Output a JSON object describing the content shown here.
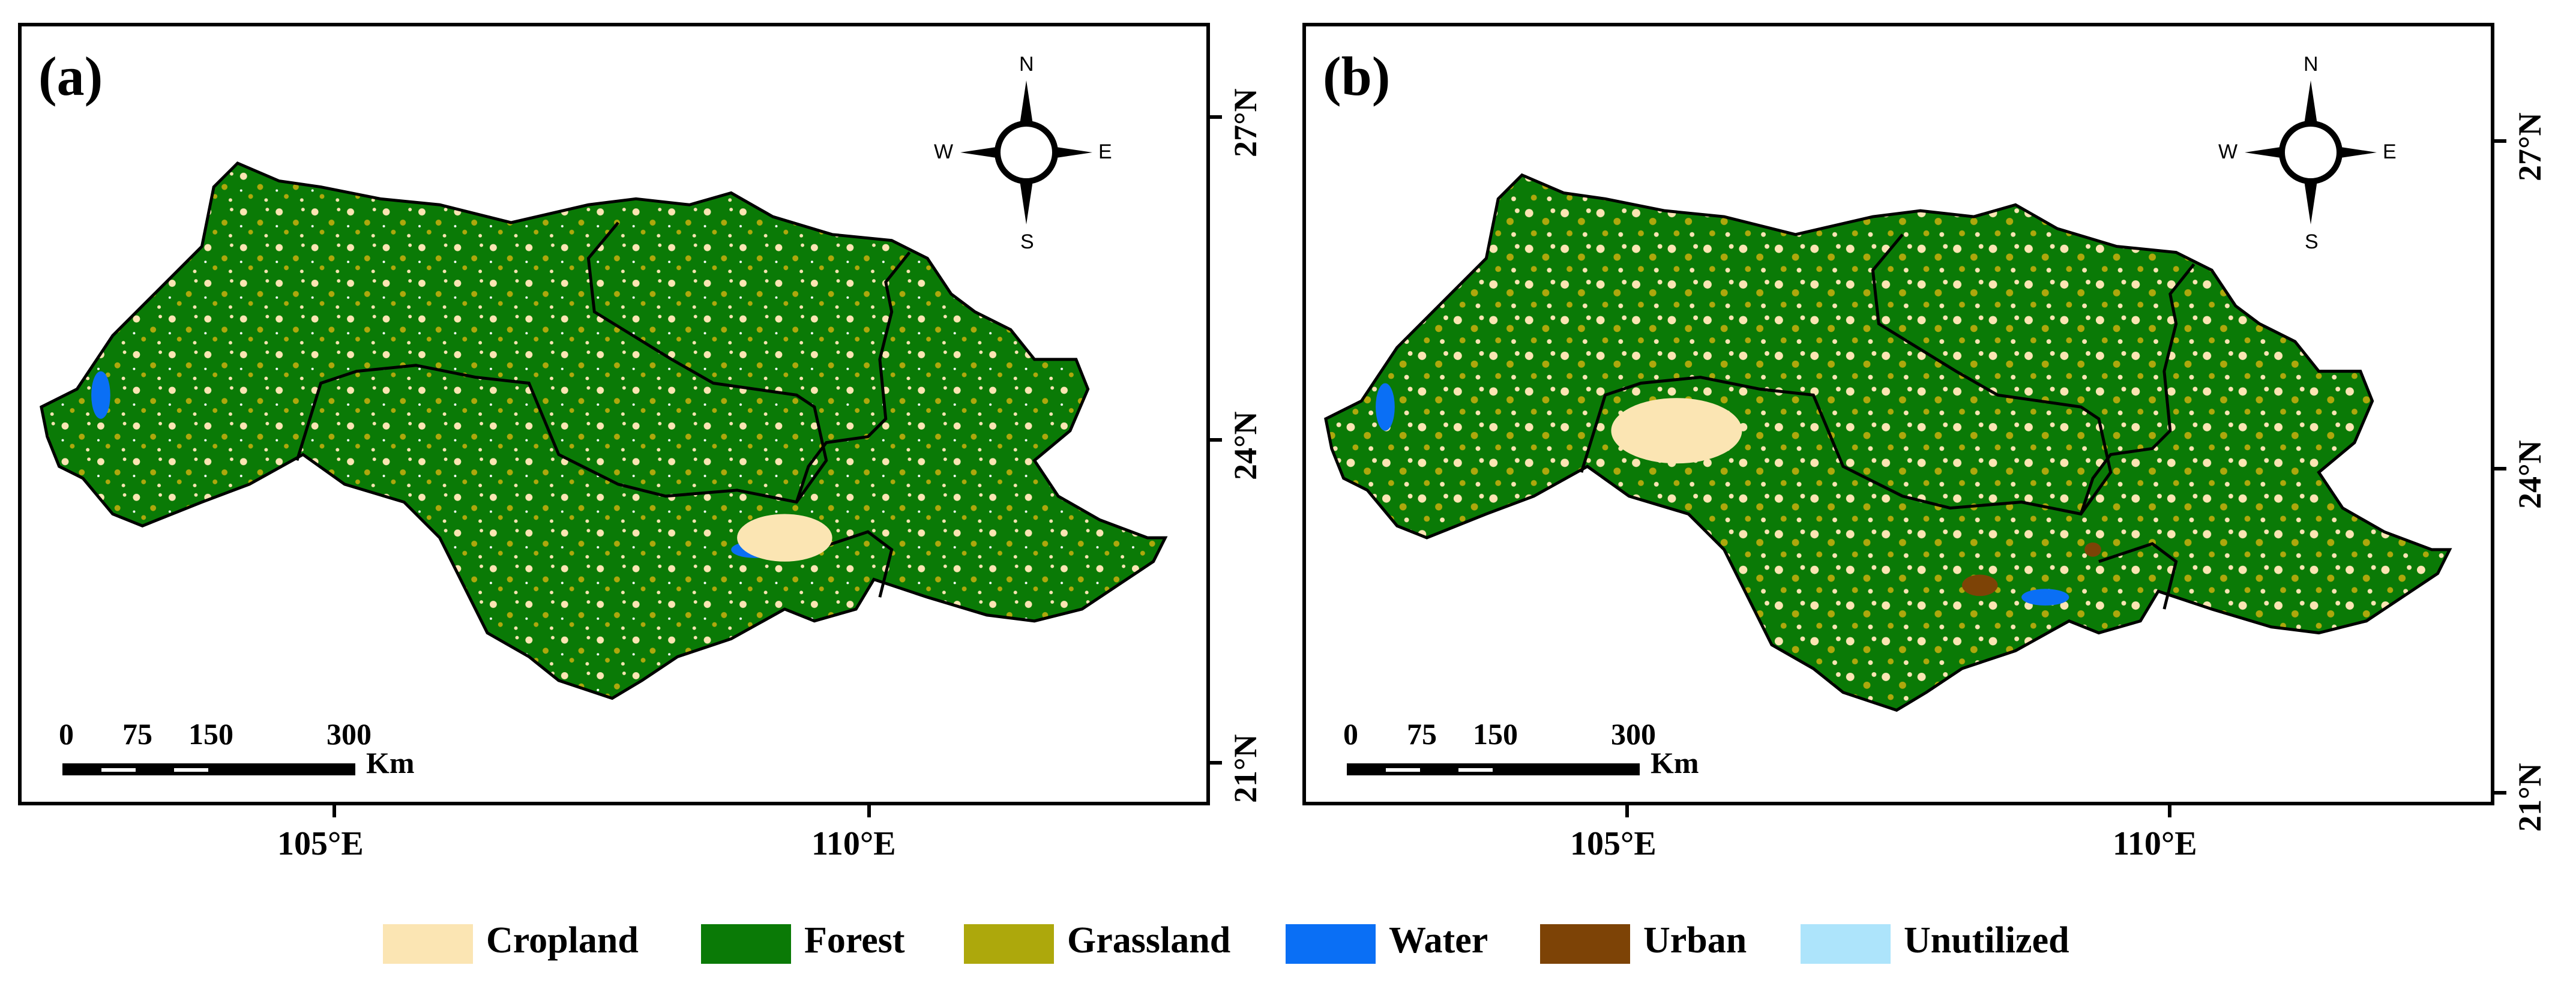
{
  "panels": [
    {
      "label": "(a)"
    },
    {
      "label": "(b)"
    }
  ],
  "compass": {
    "n": "N",
    "s": "S",
    "e": "E",
    "w": "W"
  },
  "scalebar": {
    "ticks": [
      "0",
      "75",
      "150",
      "300"
    ],
    "unit": "Km"
  },
  "latitude_labels": [
    "27°N",
    "24°N",
    "21°N"
  ],
  "longitude_labels": [
    "105°E",
    "110°E"
  ],
  "legend": [
    {
      "label": "Cropland",
      "color": "#FBE5B3"
    },
    {
      "label": "Forest",
      "color": "#0A7A06"
    },
    {
      "label": "Grassland",
      "color": "#ADA80C"
    },
    {
      "label": "Water",
      "color": "#0A6FF5"
    },
    {
      "label": "Urban",
      "color": "#7D4306"
    },
    {
      "label": "Unutilized",
      "color": "#ADE4FB"
    }
  ]
}
